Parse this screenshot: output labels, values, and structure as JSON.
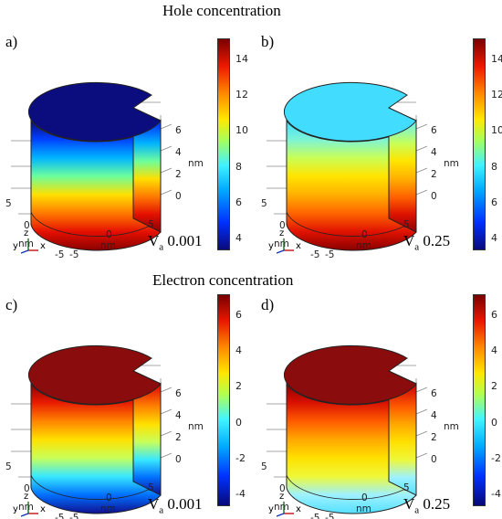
{
  "titles": {
    "hole": "Hole concentration",
    "electron": "Electron concentration"
  },
  "panels": [
    {
      "letter": "a)",
      "va_symbol": "V",
      "va_sub": "a",
      "va_value": "0.001",
      "colorbar_ticks": [
        "14",
        "12",
        "10",
        "8",
        "6",
        "4"
      ],
      "top_color": "#0b0d7e",
      "side_stops": [
        "#0a0a7c",
        "#0040ff",
        "#00b4ff",
        "#6cff9c",
        "#ffe000",
        "#ff7a00",
        "#e51000",
        "#8a0000"
      ]
    },
    {
      "letter": "b)",
      "va_symbol": "V",
      "va_sub": "a",
      "va_value": "0.25",
      "colorbar_ticks": [
        "14",
        "12",
        "10",
        "8",
        "6",
        "4"
      ],
      "top_color": "#42dcff",
      "side_stops": [
        "#42dcff",
        "#7cf3d8",
        "#c8ff58",
        "#ffe400",
        "#ffb000",
        "#ff6400",
        "#df1200",
        "#8a0000"
      ]
    },
    {
      "letter": "c)",
      "va_symbol": "V",
      "va_sub": "a",
      "va_value": "0.001",
      "colorbar_ticks": [
        "6",
        "4",
        "2",
        "0",
        "-2",
        "-4"
      ],
      "top_color": "#8a0c0c",
      "side_stops": [
        "#8a0000",
        "#e81a00",
        "#ff8200",
        "#ffe000",
        "#c8ff58",
        "#38e8ff",
        "#0070ff",
        "#101090"
      ]
    },
    {
      "letter": "d)",
      "va_symbol": "V",
      "va_sub": "a",
      "va_value": "0.25",
      "colorbar_ticks": [
        "6",
        "4",
        "2",
        "0",
        "-2",
        "-4"
      ],
      "top_color": "#8a0c0c",
      "side_stops": [
        "#8a0000",
        "#d81000",
        "#ff5a00",
        "#ffa800",
        "#ffe000",
        "#eef838",
        "#9ef2ff",
        "#54e0ff"
      ]
    }
  ],
  "axes": {
    "z_ticks": [
      "6",
      "4",
      "2",
      "0"
    ],
    "z_unit": "nm",
    "y_ticks": [
      "5",
      "0",
      "-5"
    ],
    "y_unit": "nm",
    "x_ticks": [
      "-5",
      "0",
      "5"
    ],
    "x_unit": "nm",
    "triad": {
      "y": "y",
      "z": "z",
      "x": "x"
    }
  }
}
